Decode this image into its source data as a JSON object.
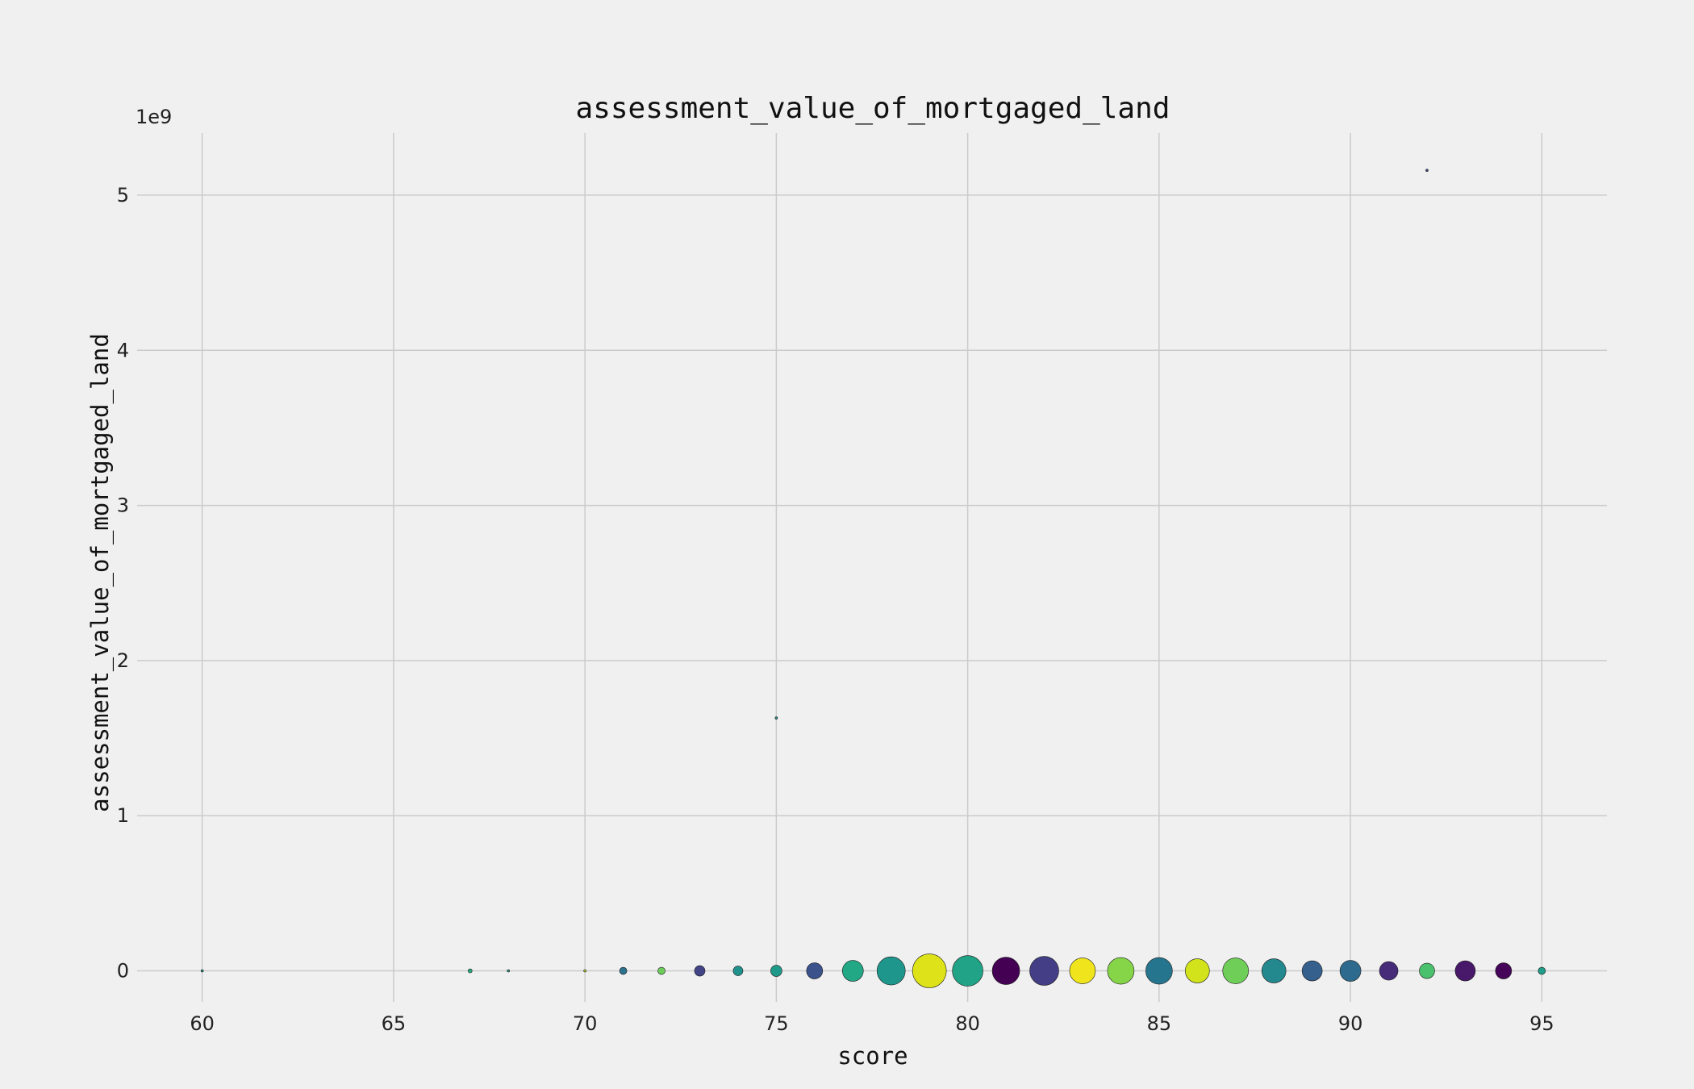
{
  "chart_data": {
    "type": "scatter",
    "title": "assessment_value_of_mortgaged_land",
    "xlabel": "score",
    "ylabel": "assessment_value_of_mortgaged_land",
    "y_offset_label": "1e9",
    "xlim": [
      58.3,
      96.7
    ],
    "ylim": [
      -0.2,
      5.4
    ],
    "x_ticks": [
      60,
      65,
      70,
      75,
      80,
      85,
      90,
      95
    ],
    "y_ticks": [
      0,
      1,
      2,
      3,
      4,
      5
    ],
    "grid": true,
    "size_unit": "relative bubble size",
    "points": [
      {
        "x": 60,
        "y": 0,
        "size": 1.5,
        "color": "#1f9e89"
      },
      {
        "x": 67,
        "y": 0,
        "size": 2.5,
        "color": "#25ac82"
      },
      {
        "x": 68,
        "y": 0,
        "size": 1.5,
        "color": "#2a9c88"
      },
      {
        "x": 70,
        "y": 0,
        "size": 1.5,
        "color": "#bddf26"
      },
      {
        "x": 71,
        "y": 0,
        "size": 4.5,
        "color": "#2c728e"
      },
      {
        "x": 72,
        "y": 0,
        "size": 4.5,
        "color": "#6ccd5a"
      },
      {
        "x": 73,
        "y": 0,
        "size": 6.5,
        "color": "#414487"
      },
      {
        "x": 74,
        "y": 0,
        "size": 6,
        "color": "#21918c"
      },
      {
        "x": 75,
        "y": 0,
        "size": 7,
        "color": "#1f9a8a"
      },
      {
        "x": 75,
        "y": 1.63,
        "size": 1.5,
        "color": "#21918c"
      },
      {
        "x": 76,
        "y": 0,
        "size": 10,
        "color": "#3b528b"
      },
      {
        "x": 77,
        "y": 0,
        "size": 13,
        "color": "#22a884"
      },
      {
        "x": 78,
        "y": 0,
        "size": 17.5,
        "color": "#1f968b"
      },
      {
        "x": 79,
        "y": 0,
        "size": 21,
        "color": "#dde318"
      },
      {
        "x": 80,
        "y": 0,
        "size": 19,
        "color": "#20a386"
      },
      {
        "x": 81,
        "y": 0,
        "size": 17,
        "color": "#440154"
      },
      {
        "x": 82,
        "y": 0,
        "size": 18,
        "color": "#433e85"
      },
      {
        "x": 83,
        "y": 0,
        "size": 16,
        "color": "#f0e51c"
      },
      {
        "x": 84,
        "y": 0,
        "size": 16.5,
        "color": "#86d549"
      },
      {
        "x": 85,
        "y": 0,
        "size": 16.5,
        "color": "#26758e"
      },
      {
        "x": 86,
        "y": 0,
        "size": 15,
        "color": "#d2e21b"
      },
      {
        "x": 87,
        "y": 0,
        "size": 16,
        "color": "#6ece58"
      },
      {
        "x": 88,
        "y": 0,
        "size": 15,
        "color": "#23898e"
      },
      {
        "x": 89,
        "y": 0,
        "size": 12.5,
        "color": "#355f8d"
      },
      {
        "x": 90,
        "y": 0,
        "size": 13,
        "color": "#2d6a8e"
      },
      {
        "x": 91,
        "y": 0,
        "size": 11.5,
        "color": "#472c7a"
      },
      {
        "x": 92,
        "y": 0,
        "size": 9.5,
        "color": "#4ac16d"
      },
      {
        "x": 92,
        "y": 5.16,
        "size": 1.5,
        "color": "#3e4989"
      },
      {
        "x": 93,
        "y": 0,
        "size": 12.5,
        "color": "#48186a"
      },
      {
        "x": 94,
        "y": 0,
        "size": 10,
        "color": "#450559"
      },
      {
        "x": 95,
        "y": 0,
        "size": 4.5,
        "color": "#1f9e89"
      }
    ]
  }
}
